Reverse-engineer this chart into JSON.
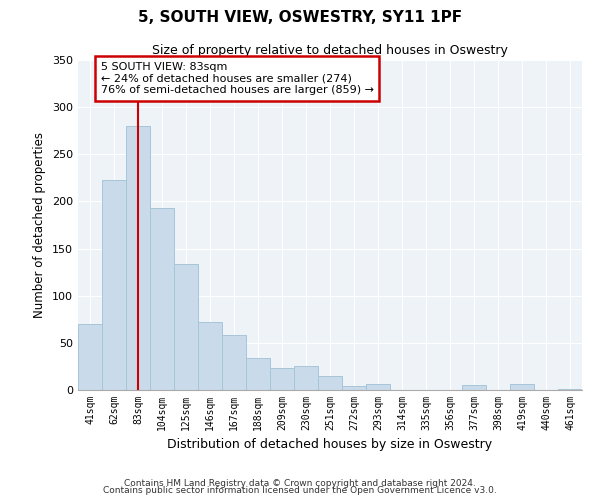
{
  "title": "5, SOUTH VIEW, OSWESTRY, SY11 1PF",
  "subtitle": "Size of property relative to detached houses in Oswestry",
  "xlabel": "Distribution of detached houses by size in Oswestry",
  "ylabel": "Number of detached properties",
  "bar_labels": [
    "41sqm",
    "62sqm",
    "83sqm",
    "104sqm",
    "125sqm",
    "146sqm",
    "167sqm",
    "188sqm",
    "209sqm",
    "230sqm",
    "251sqm",
    "272sqm",
    "293sqm",
    "314sqm",
    "335sqm",
    "356sqm",
    "377sqm",
    "398sqm",
    "419sqm",
    "440sqm",
    "461sqm"
  ],
  "bar_values": [
    70,
    223,
    280,
    193,
    134,
    72,
    58,
    34,
    23,
    25,
    15,
    4,
    6,
    0,
    0,
    0,
    5,
    0,
    6,
    0,
    1
  ],
  "bar_color": "#c9daea",
  "bar_edge_color": "#a8c4d8",
  "highlight_index": 2,
  "highlight_line_color": "#cc0000",
  "annotation_text": "5 SOUTH VIEW: 83sqm\n← 24% of detached houses are smaller (274)\n76% of semi-detached houses are larger (859) →",
  "annotation_box_color": "#ffffff",
  "annotation_box_edge": "#cc0000",
  "ylim": [
    0,
    350
  ],
  "yticks": [
    0,
    50,
    100,
    150,
    200,
    250,
    300,
    350
  ],
  "footer1": "Contains HM Land Registry data © Crown copyright and database right 2024.",
  "footer2": "Contains public sector information licensed under the Open Government Licence v3.0.",
  "background_color": "#ffffff",
  "plot_bg_color": "#eef3f8",
  "grid_color": "#ffffff"
}
